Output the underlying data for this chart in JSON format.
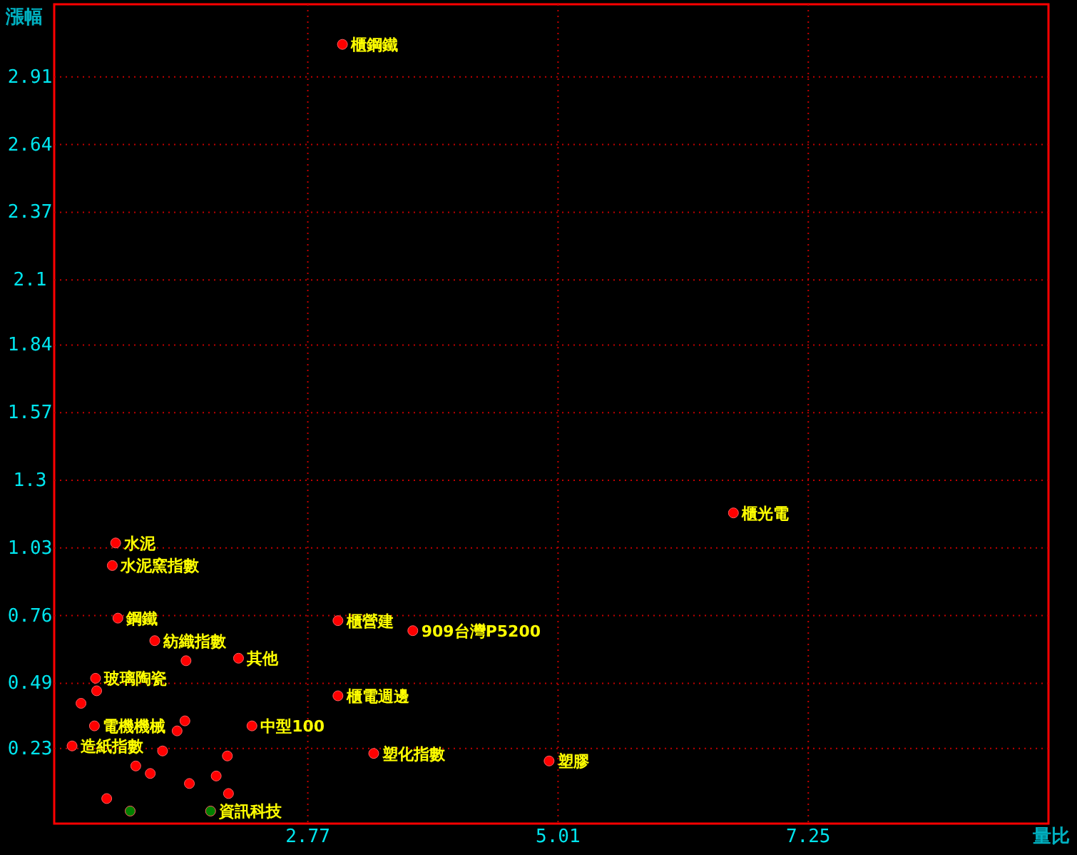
{
  "chart_data": {
    "type": "scatter",
    "xlabel": "量比",
    "ylabel": "漲幅",
    "xlim": [
      0.5,
      9.4
    ],
    "ylim": [
      -0.07,
      3.2
    ],
    "xticks": [
      2.77,
      5.01,
      7.25
    ],
    "yticks": [
      0.23,
      0.49,
      0.76,
      1.03,
      1.3,
      1.57,
      1.84,
      2.1,
      2.37,
      2.64,
      2.91
    ],
    "grid": true,
    "marker": "circle",
    "series": [
      {
        "color": "#ff0000",
        "x": [
          3.08,
          6.58,
          1.05,
          1.02,
          1.07,
          3.04,
          3.71,
          1.4,
          1.68,
          2.15,
          0.87,
          0.88,
          0.74,
          3.04,
          0.86,
          1.67,
          1.6,
          2.27,
          0.66,
          3.36,
          4.93,
          1.47,
          2.05,
          1.23,
          1.36,
          1.95,
          1.71,
          2.06,
          0.97
        ],
        "values": [
          3.04,
          1.17,
          1.05,
          0.96,
          0.75,
          0.74,
          0.7,
          0.66,
          0.58,
          0.59,
          0.51,
          0.46,
          0.41,
          0.44,
          0.32,
          0.34,
          0.3,
          0.32,
          0.24,
          0.21,
          0.18,
          0.22,
          0.2,
          0.16,
          0.13,
          0.12,
          0.09,
          0.05,
          0.03
        ]
      },
      {
        "color": "#008000",
        "x": [
          1.18,
          1.9
        ],
        "values": [
          -0.02,
          -0.02
        ]
      }
    ],
    "annotations": [
      {
        "text": "櫃鋼鐵",
        "x": 3.08,
        "y": 3.04
      },
      {
        "text": "櫃光電",
        "x": 6.58,
        "y": 1.17
      },
      {
        "text": "水泥",
        "x": 1.05,
        "y": 1.05
      },
      {
        "text": "水泥窯指數",
        "x": 1.02,
        "y": 0.96
      },
      {
        "text": "鋼鐵",
        "x": 1.07,
        "y": 0.75
      },
      {
        "text": "櫃營建",
        "x": 3.04,
        "y": 0.74
      },
      {
        "text": "909台灣P5200",
        "x": 3.71,
        "y": 0.7
      },
      {
        "text": "紡織指數",
        "x": 1.4,
        "y": 0.66
      },
      {
        "text": "其他",
        "x": 2.15,
        "y": 0.59
      },
      {
        "text": "玻璃陶瓷",
        "x": 0.87,
        "y": 0.51
      },
      {
        "text": "櫃電週邊",
        "x": 3.04,
        "y": 0.44
      },
      {
        "text": "電機機械",
        "x": 0.86,
        "y": 0.32
      },
      {
        "text": "中型100",
        "x": 2.27,
        "y": 0.32
      },
      {
        "text": "造紙指數",
        "x": 0.66,
        "y": 0.24
      },
      {
        "text": "塑化指數",
        "x": 3.36,
        "y": 0.21
      },
      {
        "text": "塑膠",
        "x": 4.93,
        "y": 0.18
      },
      {
        "text": "資訊科技",
        "x": 1.9,
        "y": -0.02
      }
    ]
  }
}
